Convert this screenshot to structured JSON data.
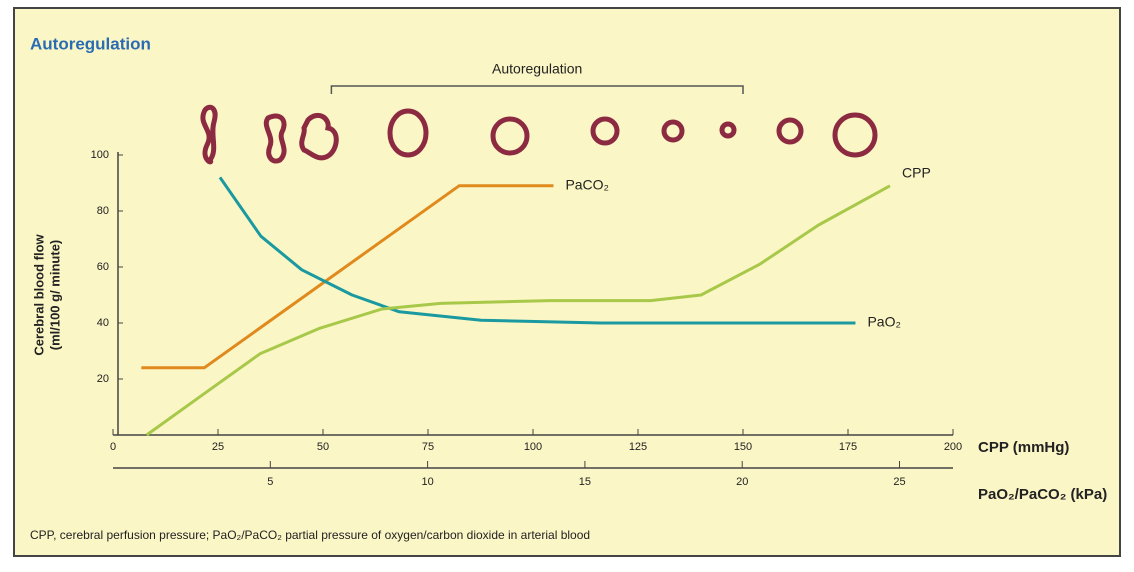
{
  "chart_data": {
    "type": "line",
    "title": "Autoregulation",
    "annotation": {
      "text": "Autoregulation",
      "x_range": [
        52,
        150
      ]
    },
    "ylabel": [
      "Cerebral blood flow",
      "(ml/100 g/ minute)"
    ],
    "xlabel": "CPP (mmHg)",
    "x2label": "PaO₂/PaCO₂ (kPa)",
    "footnote": "CPP, cerebral perfusion pressure; PaO₂/PaCO₂ partial pressure of oxygen/carbon dioxide in arterial blood",
    "xlim": [
      0,
      200
    ],
    "xticks": [
      0,
      25,
      50,
      75,
      100,
      125,
      150,
      175,
      200
    ],
    "x2lim": [
      0,
      26.7
    ],
    "x2ticks": [
      5,
      10,
      15,
      20,
      25
    ],
    "ylim": [
      0,
      100
    ],
    "yticks": [
      20,
      40,
      60,
      80,
      100
    ],
    "series": [
      {
        "name": "PaCO₂",
        "color": "#e08a1e",
        "axis": "x2",
        "x": [
          0.9,
          2.9,
          11,
          14
        ],
        "values": [
          24,
          24,
          89,
          89
        ]
      },
      {
        "name": "PaO₂",
        "color": "#1a9aa0",
        "axis": "x2",
        "x": [
          3.4,
          4.7,
          6.0,
          7.6,
          9.1,
          11.7,
          15.5,
          23.6
        ],
        "values": [
          92,
          71,
          59,
          50,
          44,
          41,
          40,
          40
        ]
      },
      {
        "name": "CPP",
        "color": "#a8c84a",
        "x": [
          8,
          21,
          35,
          49,
          64,
          78,
          104,
          128,
          140,
          154,
          168,
          185
        ],
        "values": [
          0,
          14,
          29,
          38,
          45,
          47,
          48,
          48,
          50,
          61,
          75,
          89
        ]
      }
    ]
  }
}
